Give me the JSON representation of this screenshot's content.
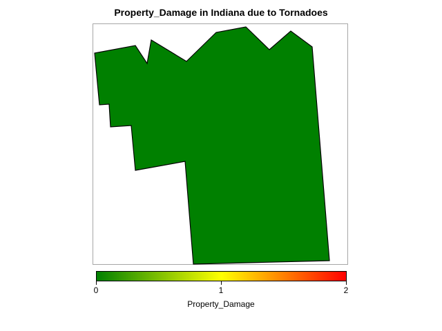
{
  "title": "Property_Damage in Indiana due to Tornadoes",
  "legend": {
    "title": "Property_Damage",
    "min": 0,
    "max": 2,
    "ticks": [
      "0",
      "1",
      "2"
    ],
    "gradient_colors": [
      "#008000",
      "#ffff00",
      "#ff0000"
    ]
  },
  "region": {
    "name": "Indiana",
    "value": 0,
    "fill_color": "#008000",
    "outline_color": "#000000"
  }
}
